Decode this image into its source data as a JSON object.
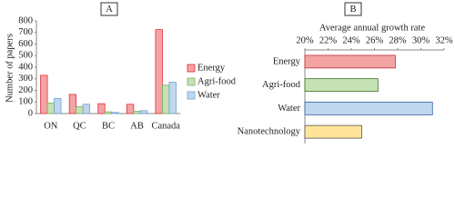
{
  "chart_data": [
    {
      "type": "bar",
      "panel_label": "A",
      "ylabel": "Number of papers",
      "categories": [
        "ON",
        "QC",
        "BC",
        "AB",
        "Canada"
      ],
      "series": [
        {
          "name": "Energy",
          "color": "#f4a3a3",
          "edgecolor": "#e0303a",
          "values": [
            330,
            165,
            85,
            80,
            725
          ]
        },
        {
          "name": "Agri-food",
          "color": "#c6e2b4",
          "edgecolor": "#78b35a",
          "values": [
            90,
            60,
            15,
            20,
            245
          ]
        },
        {
          "name": "Water",
          "color": "#bfd8ef",
          "edgecolor": "#6f9fcf",
          "values": [
            130,
            80,
            10,
            25,
            270
          ]
        }
      ],
      "ylim": [
        0,
        800
      ],
      "yticks": [
        0,
        100,
        200,
        300,
        400,
        500,
        600,
        700,
        800
      ],
      "grid": false,
      "legend": "right"
    },
    {
      "type": "barh",
      "panel_label": "B",
      "title": "Average annual growth rate",
      "categories": [
        "Energy",
        "Agri-food",
        "Water",
        "Nanotechnology"
      ],
      "values": [
        27.8,
        26.3,
        31.0,
        24.9
      ],
      "colors": [
        "#f4a3a3",
        "#c6e2b4",
        "#bfd8ef",
        "#ffe49a"
      ],
      "edgecolors": [
        "#c0303a",
        "#3f6f2a",
        "#2f5f9f",
        "#555555"
      ],
      "xlim": [
        20,
        32
      ],
      "xticks": [
        {
          "value": 20,
          "label": "20%"
        },
        {
          "value": 22,
          "label": "22%"
        },
        {
          "value": 24,
          "label": "24%"
        },
        {
          "value": 26,
          "label": "26%"
        },
        {
          "value": 28,
          "label": "28%"
        },
        {
          "value": 30,
          "label": "30%"
        },
        {
          "value": 32,
          "label": "32%"
        }
      ],
      "grid": false
    }
  ]
}
